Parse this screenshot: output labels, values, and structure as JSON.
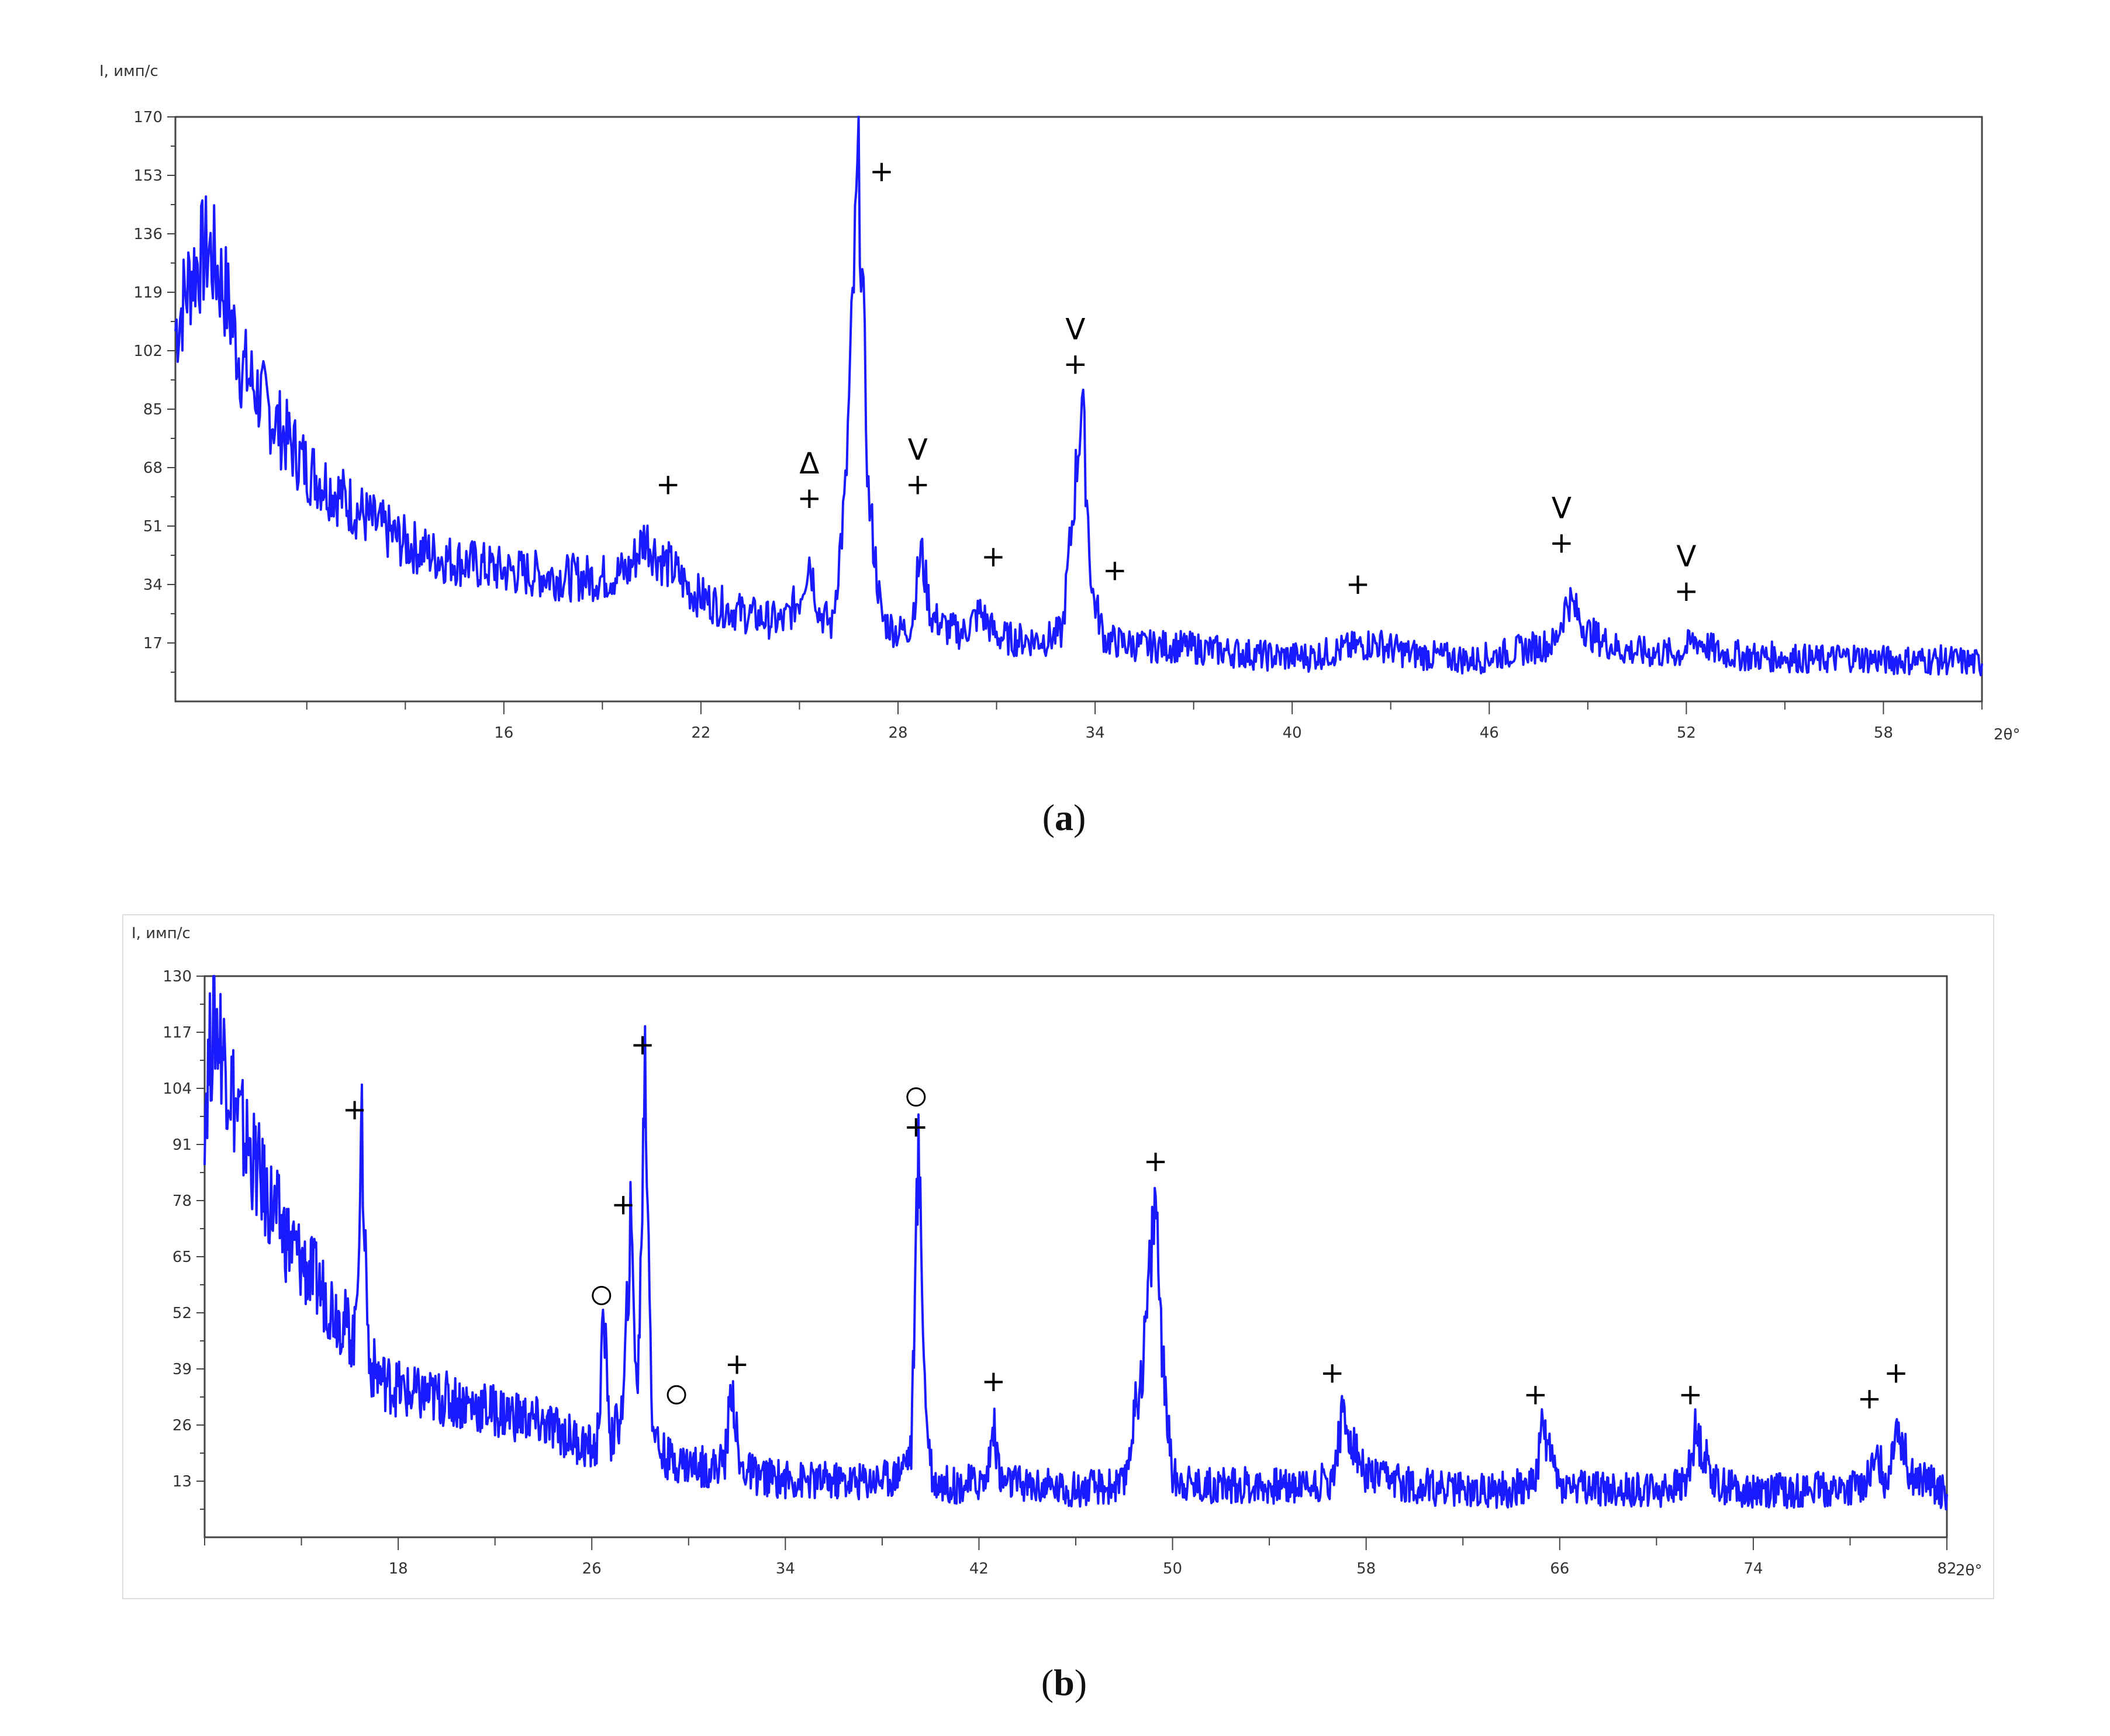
{
  "chart_data": [
    {
      "type": "line",
      "panel_label": "a",
      "caption_open": "(",
      "caption_close": ")",
      "ylabel": "I, имп/с",
      "xlabel": "2θ°",
      "x_range": [
        6,
        61
      ],
      "y_range": [
        0,
        170
      ],
      "x_ticks": [
        16,
        22,
        28,
        34,
        40,
        46,
        52,
        58
      ],
      "y_ticks": [
        17,
        34,
        51,
        68,
        85,
        102,
        119,
        136,
        153,
        170
      ],
      "line_color": "#1a1aff",
      "series": [
        {
          "x": [
            6.0,
            6.5,
            7.0,
            7.5,
            8.0,
            9.0,
            10.0,
            11.0,
            12.0,
            13.0,
            14.0,
            15.0,
            16.0,
            17.0,
            18.0,
            19.0,
            19.8,
            20.3,
            20.7,
            21.2,
            21.7,
            22.5,
            23.5,
            24.5,
            25.0,
            25.3,
            25.6,
            26.0,
            26.4,
            26.8,
            27.1,
            27.5,
            28.0,
            28.4,
            28.7,
            29.0,
            29.5,
            30.0,
            30.5,
            31.0,
            31.5,
            32.0,
            32.5,
            33.0,
            33.3,
            33.6,
            33.9,
            34.3,
            34.8,
            35.5,
            36.5,
            37.5,
            38.5,
            39.5,
            40.5,
            41.5,
            42.5,
            43.5,
            44.5,
            45.5,
            46.0,
            47.0,
            48.0,
            48.4,
            49.0,
            50.0,
            51.0,
            51.8,
            52.3,
            53.0,
            54.0,
            55.0,
            56.0,
            57.0,
            58.0,
            59.0,
            60.0,
            61.0
          ],
          "y": [
            108,
            125,
            132,
            120,
            98,
            82,
            68,
            60,
            52,
            46,
            42,
            40,
            38,
            37,
            36,
            36,
            38,
            48,
            42,
            38,
            32,
            28,
            25,
            23,
            30,
            42,
            26,
            22,
            60,
            158,
            60,
            24,
            20,
            22,
            44,
            25,
            21,
            20,
            26,
            19,
            18,
            18,
            18,
            20,
            52,
            88,
            32,
            18,
            17,
            16,
            16,
            15,
            14,
            13,
            13,
            15,
            17,
            14,
            13,
            12,
            13,
            15,
            17,
            30,
            20,
            15,
            14,
            14,
            18,
            14,
            13,
            13,
            12,
            13,
            12,
            12,
            12,
            11
          ]
        }
      ],
      "annotations": [
        {
          "x": 21.0,
          "y": 63,
          "label": "+"
        },
        {
          "x": 25.3,
          "y": 59,
          "label": "+"
        },
        {
          "x": 25.3,
          "y": 69,
          "label": "Δ"
        },
        {
          "x": 27.5,
          "y": 154,
          "label": "+"
        },
        {
          "x": 28.6,
          "y": 63,
          "label": "+"
        },
        {
          "x": 28.6,
          "y": 73,
          "label": "V"
        },
        {
          "x": 30.9,
          "y": 42,
          "label": "+"
        },
        {
          "x": 33.4,
          "y": 98,
          "label": "+"
        },
        {
          "x": 33.4,
          "y": 108,
          "label": "V"
        },
        {
          "x": 34.6,
          "y": 38,
          "label": "+"
        },
        {
          "x": 42.0,
          "y": 34,
          "label": "+"
        },
        {
          "x": 48.2,
          "y": 46,
          "label": "+"
        },
        {
          "x": 48.2,
          "y": 56,
          "label": "V"
        },
        {
          "x": 52.0,
          "y": 32,
          "label": "+"
        },
        {
          "x": 52.0,
          "y": 42,
          "label": "V"
        }
      ]
    },
    {
      "type": "line",
      "panel_label": "b",
      "caption_open": "(",
      "caption_close": ")",
      "ylabel": "I, имп/с",
      "xlabel": "2θ°",
      "x_range": [
        10,
        82
      ],
      "y_range": [
        0,
        130
      ],
      "x_ticks": [
        18,
        26,
        34,
        42,
        50,
        58,
        66,
        74,
        82
      ],
      "y_ticks": [
        13,
        26,
        39,
        52,
        65,
        78,
        91,
        104,
        117,
        130
      ],
      "line_color": "#1a1aff",
      "series": [
        {
          "x": [
            10.0,
            10.4,
            10.8,
            11.5,
            12.5,
            13.5,
            14.5,
            15.5,
            16.2,
            16.5,
            16.8,
            17.5,
            18.5,
            20.0,
            21.5,
            23.0,
            24.5,
            25.5,
            26.2,
            26.5,
            26.8,
            27.3,
            27.6,
            27.9,
            28.2,
            28.5,
            28.8,
            29.2,
            30.0,
            31.0,
            31.5,
            31.8,
            32.1,
            33.0,
            35.0,
            37.0,
            38.5,
            39.2,
            39.5,
            39.8,
            40.1,
            41.0,
            42.3,
            42.6,
            42.9,
            44.0,
            46.0,
            48.0,
            48.8,
            49.3,
            49.6,
            50.0,
            51.0,
            53.0,
            55.0,
            56.6,
            57.0,
            58.0,
            60.0,
            62.0,
            64.0,
            65.0,
            65.3,
            66.0,
            68.0,
            70.0,
            71.2,
            71.6,
            72.5,
            74.0,
            76.0,
            78.0,
            78.8,
            79.2,
            79.5,
            79.9,
            80.5,
            81.5,
            82.0
          ],
          "y": [
            100,
            122,
            112,
            95,
            80,
            68,
            60,
            52,
            46,
            92,
            40,
            36,
            33,
            32,
            30,
            28,
            25,
            22,
            20,
            50,
            22,
            30,
            72,
            32,
            110,
            28,
            20,
            18,
            17,
            16,
            18,
            36,
            16,
            14,
            13,
            13,
            14,
            20,
            90,
            30,
            13,
            12,
            13,
            26,
            13,
            12,
            11,
            12,
            42,
            80,
            40,
            14,
            12,
            12,
            12,
            13,
            28,
            14,
            12,
            11,
            11,
            13,
            26,
            12,
            11,
            11,
            12,
            24,
            12,
            11,
            11,
            11,
            14,
            18,
            12,
            28,
            14,
            12,
            10
          ]
        }
      ],
      "annotations": [
        {
          "x": 16.2,
          "y": 99,
          "label": "+"
        },
        {
          "x": 26.4,
          "y": 56,
          "label": "o"
        },
        {
          "x": 27.3,
          "y": 77,
          "label": "+"
        },
        {
          "x": 28.1,
          "y": 114,
          "label": "+"
        },
        {
          "x": 29.5,
          "y": 33,
          "label": "o"
        },
        {
          "x": 32.0,
          "y": 40,
          "label": "+"
        },
        {
          "x": 39.4,
          "y": 95,
          "label": "+"
        },
        {
          "x": 39.4,
          "y": 102,
          "label": "o"
        },
        {
          "x": 42.6,
          "y": 36,
          "label": "+"
        },
        {
          "x": 49.3,
          "y": 87,
          "label": "+"
        },
        {
          "x": 56.6,
          "y": 38,
          "label": "+"
        },
        {
          "x": 65.0,
          "y": 33,
          "label": "+"
        },
        {
          "x": 71.4,
          "y": 33,
          "label": "+"
        },
        {
          "x": 78.8,
          "y": 32,
          "label": "+"
        },
        {
          "x": 79.9,
          "y": 38,
          "label": "+"
        }
      ]
    }
  ]
}
